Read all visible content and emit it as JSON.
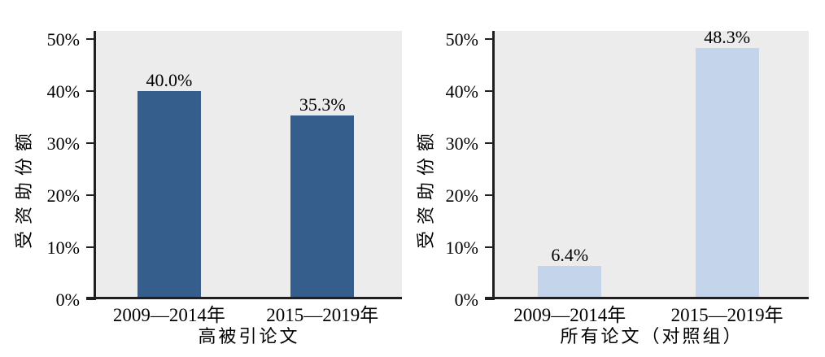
{
  "chart_data": [
    {
      "type": "bar",
      "panel": "left",
      "categories": [
        "2009—2014年",
        "2015—2019年"
      ],
      "values": [
        40.0,
        35.3
      ],
      "value_labels": [
        "40.0%",
        "35.3%"
      ],
      "xlabel": "高被引论文",
      "ylabel": "受资助份额",
      "ylim": [
        0,
        51.5
      ],
      "yticks": [
        0,
        10,
        20,
        30,
        40,
        50
      ],
      "ytick_labels": [
        "0%",
        "10%",
        "20%",
        "30%",
        "40%",
        "50%"
      ],
      "bar_color": "#355e8c",
      "plot_background": "#ececec",
      "grid": false,
      "legend_position": "none"
    },
    {
      "type": "bar",
      "panel": "right",
      "categories": [
        "2009—2014年",
        "2015—2019年"
      ],
      "values": [
        6.4,
        48.3
      ],
      "value_labels": [
        "6.4%",
        "48.3%"
      ],
      "xlabel": "所有论文（对照组）",
      "ylabel": "受资助份额",
      "ylim": [
        0,
        51.5
      ],
      "yticks": [
        0,
        10,
        20,
        30,
        40,
        50
      ],
      "ytick_labels": [
        "0%",
        "10%",
        "20%",
        "30%",
        "40%",
        "50%"
      ],
      "bar_color": "#c4d5eb",
      "plot_background": "#ececec",
      "grid": false,
      "legend_position": "none"
    }
  ],
  "colors": {
    "axis": "#231f20",
    "text": "#000000",
    "figure_background": "#ffffff",
    "dark_bar": "#355e8c",
    "light_bar": "#c4d5eb",
    "plot_background": "#ececec"
  }
}
